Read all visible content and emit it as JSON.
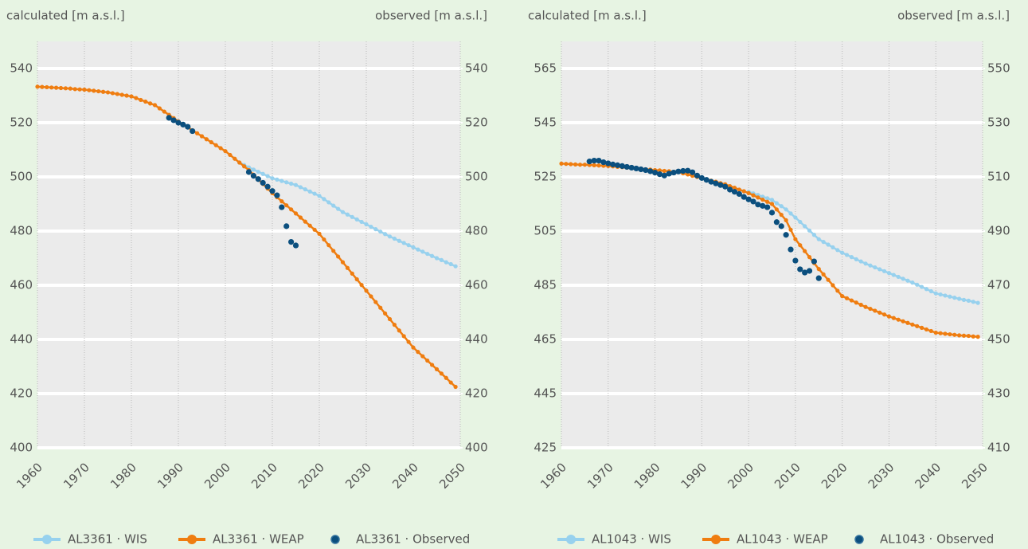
{
  "chart_data": [
    {
      "type": "line",
      "ylabel": "calculated [m a.s.l.]",
      "y2label": "observed [m a.s.l.]",
      "xlim": [
        1960,
        2050
      ],
      "xticks": [
        1960,
        1970,
        1980,
        1990,
        2000,
        2010,
        2020,
        2030,
        2040,
        2050
      ],
      "ylim": [
        400,
        550
      ],
      "yticks": [
        400,
        420,
        440,
        460,
        480,
        500,
        520,
        540
      ],
      "y2lim": [
        400,
        550
      ],
      "y2ticks": [
        400,
        420,
        440,
        460,
        480,
        500,
        520,
        540
      ],
      "grid": true,
      "x": [
        1960,
        1961,
        1962,
        1963,
        1964,
        1965,
        1966,
        1967,
        1968,
        1969,
        1970,
        1971,
        1972,
        1973,
        1974,
        1975,
        1976,
        1977,
        1978,
        1979,
        1980,
        1981,
        1982,
        1983,
        1984,
        1985,
        1986,
        1987,
        1988,
        1989,
        1990,
        1991,
        1992,
        1993,
        1994,
        1995,
        1996,
        1997,
        1998,
        1999,
        2000,
        2001,
        2002,
        2003,
        2004,
        2005,
        2006,
        2007,
        2008,
        2009,
        2010,
        2011,
        2012,
        2013,
        2014,
        2015,
        2016,
        2017,
        2018,
        2019,
        2020,
        2021,
        2022,
        2023,
        2024,
        2025,
        2026,
        2027,
        2028,
        2029,
        2030,
        2031,
        2032,
        2033,
        2034,
        2035,
        2036,
        2037,
        2038,
        2039,
        2040,
        2041,
        2042,
        2043,
        2044,
        2045,
        2046,
        2047,
        2048,
        2049
      ],
      "series": [
        {
          "name": "AL3361 · WIS",
          "color": "#97d1ee",
          "values": [
            null,
            null,
            null,
            null,
            null,
            null,
            null,
            null,
            null,
            null,
            null,
            null,
            null,
            null,
            null,
            null,
            null,
            null,
            null,
            null,
            null,
            null,
            null,
            null,
            null,
            null,
            null,
            null,
            null,
            null,
            null,
            null,
            null,
            null,
            null,
            null,
            null,
            null,
            null,
            null,
            null,
            null,
            null,
            505.3,
            504.4,
            503.5,
            502.7,
            501.9,
            501.1,
            500.3,
            499.5,
            499,
            498.5,
            498,
            497.5,
            497,
            496.2,
            495.4,
            494.6,
            493.8,
            493,
            491.8,
            490.6,
            489.4,
            488.2,
            487,
            486.1,
            485.2,
            484.3,
            483.4,
            482.5,
            481.6,
            480.7,
            479.8,
            478.9,
            478,
            477.2,
            476.4,
            475.6,
            474.8,
            474,
            473.2,
            472.4,
            471.6,
            470.8,
            470,
            469.3,
            468.5,
            467.8,
            467
          ]
        },
        {
          "name": "AL3361 · WEAP",
          "color": "#ef7d10",
          "values": [
            533.3,
            533.2,
            533.1,
            533,
            532.9,
            532.8,
            532.7,
            532.6,
            532.4,
            532.3,
            532.2,
            532,
            531.8,
            531.6,
            531.4,
            531.2,
            530.9,
            530.6,
            530.3,
            530,
            529.7,
            529.1,
            528.4,
            527.8,
            527.1,
            526.5,
            525.3,
            524.1,
            522.9,
            521.7,
            520.5,
            519.4,
            518.3,
            517.2,
            516.1,
            515,
            513.9,
            512.8,
            511.7,
            510.6,
            509.5,
            508.1,
            506.7,
            505.3,
            503.9,
            502.5,
            500.8,
            499.1,
            497.4,
            495.7,
            494,
            492.5,
            491,
            489.5,
            488,
            486.5,
            485,
            483.5,
            482,
            480.5,
            479,
            476.9,
            474.8,
            472.7,
            470.6,
            468.5,
            466.4,
            464.3,
            462.2,
            460.1,
            458,
            455.9,
            453.8,
            451.7,
            449.6,
            447.5,
            445.4,
            443.3,
            441.2,
            439.1,
            437,
            435.4,
            433.8,
            432.2,
            430.6,
            429,
            427.4,
            425.8,
            424.1,
            422.5
          ]
        },
        {
          "name": "AL3361 · Observed",
          "color": "#0b4f7e",
          "axis": "y2",
          "line": false,
          "x": [
            1988,
            1989,
            1990,
            1991,
            1992,
            1993,
            2005,
            2006,
            2007,
            2008,
            2009,
            2010,
            2011,
            2012,
            2013,
            2014,
            2015
          ],
          "values": [
            521.8,
            520.9,
            520,
            519.3,
            518.5,
            516.9,
            501.8,
            500.4,
            499.2,
            497.8,
            496.4,
            494.8,
            493.2,
            488.8,
            481.8,
            476,
            474.7
          ]
        }
      ]
    },
    {
      "type": "line",
      "ylabel": "calculated [m a.s.l.]",
      "y2label": "observed [m a.s.l.]",
      "xlim": [
        1960,
        2050
      ],
      "xticks": [
        1960,
        1970,
        1980,
        1990,
        2000,
        2010,
        2020,
        2030,
        2040,
        2050
      ],
      "ylim": [
        425,
        575
      ],
      "yticks": [
        425,
        445,
        465,
        485,
        505,
        525,
        545,
        565
      ],
      "y2lim": [
        410,
        560
      ],
      "y2ticks": [
        410,
        430,
        450,
        470,
        490,
        510,
        530,
        550
      ],
      "grid": true,
      "x": [
        1960,
        1961,
        1962,
        1963,
        1964,
        1965,
        1966,
        1967,
        1968,
        1969,
        1970,
        1971,
        1972,
        1973,
        1974,
        1975,
        1976,
        1977,
        1978,
        1979,
        1980,
        1981,
        1982,
        1983,
        1984,
        1985,
        1986,
        1987,
        1988,
        1989,
        1990,
        1991,
        1992,
        1993,
        1994,
        1995,
        1996,
        1997,
        1998,
        1999,
        2000,
        2001,
        2002,
        2003,
        2004,
        2005,
        2006,
        2007,
        2008,
        2009,
        2010,
        2011,
        2012,
        2013,
        2014,
        2015,
        2016,
        2017,
        2018,
        2019,
        2020,
        2021,
        2022,
        2023,
        2024,
        2025,
        2026,
        2027,
        2028,
        2029,
        2030,
        2031,
        2032,
        2033,
        2034,
        2035,
        2036,
        2037,
        2038,
        2039,
        2040,
        2041,
        2042,
        2043,
        2044,
        2045,
        2046,
        2047,
        2048,
        2049
      ],
      "series": [
        {
          "name": "AL1043 · WIS",
          "color": "#97d1ee",
          "values": [
            null,
            null,
            null,
            null,
            null,
            null,
            null,
            null,
            null,
            null,
            null,
            null,
            null,
            null,
            null,
            null,
            null,
            null,
            null,
            null,
            null,
            null,
            null,
            null,
            null,
            null,
            null,
            null,
            null,
            null,
            null,
            null,
            null,
            null,
            null,
            null,
            null,
            null,
            null,
            null,
            519.5,
            518.9,
            518.3,
            517.7,
            517.1,
            516.5,
            515.3,
            514.2,
            513,
            511.5,
            510,
            508.4,
            506.8,
            505.2,
            503.6,
            502,
            501,
            500,
            499,
            498,
            497,
            496.2,
            495.4,
            494.6,
            493.8,
            493,
            492.3,
            491.6,
            490.9,
            490.2,
            489.5,
            488.8,
            488.1,
            487.4,
            486.7,
            486,
            485.2,
            484.4,
            483.6,
            482.8,
            482,
            481.6,
            481.2,
            480.8,
            480.4,
            480,
            479.6,
            479.3,
            478.9,
            478.5
          ]
        },
        {
          "name": "AL1043 · WEAP",
          "color": "#ef7d10",
          "values": [
            529.9,
            529.8,
            529.7,
            529.6,
            529.5,
            529.5,
            529.4,
            529.3,
            529.2,
            529.1,
            529,
            528.9,
            528.7,
            528.6,
            528.4,
            528.3,
            528.1,
            528,
            527.8,
            527.7,
            527.5,
            527.4,
            527.2,
            527.1,
            526.9,
            526.8,
            526.3,
            525.9,
            525.4,
            525,
            524.5,
            524.1,
            523.6,
            523.2,
            522.7,
            522.3,
            521.6,
            521,
            520.3,
            519.7,
            519,
            518.2,
            517.4,
            516.6,
            515.8,
            515,
            513,
            511,
            509,
            505.5,
            502,
            499.8,
            497.6,
            495.4,
            493.2,
            491,
            489,
            487,
            485,
            483,
            481,
            480.2,
            479.4,
            478.6,
            477.8,
            477,
            476.3,
            475.6,
            474.9,
            474.2,
            473.5,
            472.9,
            472.3,
            471.7,
            471.1,
            470.5,
            469.9,
            469.3,
            468.7,
            468.1,
            467.5,
            467.3,
            467.1,
            466.9,
            466.7,
            466.5,
            466.4,
            466.3,
            466.1,
            466
          ]
        },
        {
          "name": "AL1043 · Observed",
          "color": "#0b4f7e",
          "axis": "y2",
          "line": false,
          "x": [
            1966,
            1967,
            1968,
            1969,
            1970,
            1971,
            1972,
            1973,
            1974,
            1975,
            1976,
            1977,
            1978,
            1979,
            1980,
            1981,
            1982,
            1983,
            1984,
            1985,
            1986,
            1987,
            1988,
            1989,
            1990,
            1991,
            1992,
            1993,
            1994,
            1995,
            1996,
            1997,
            1998,
            1999,
            2000,
            2001,
            2002,
            2003,
            2004,
            2005,
            2006,
            2007,
            2008,
            2009,
            2010,
            2011,
            2012,
            2013,
            2014,
            2015
          ],
          "values": [
            515.7,
            516,
            516,
            515.4,
            515,
            514.6,
            514.3,
            514,
            513.7,
            513.4,
            513.1,
            512.8,
            512.5,
            512.1,
            511.6,
            511,
            510.5,
            511.2,
            511.6,
            512,
            512.2,
            512.3,
            511.7,
            510.5,
            509.6,
            508.9,
            508.2,
            507.6,
            507,
            506.4,
            505.3,
            504.5,
            503.7,
            502.6,
            501.7,
            500.9,
            499.8,
            499.3,
            498.8,
            496.8,
            493.3,
            491.8,
            488.6,
            483.2,
            479.1,
            475.9,
            474.7,
            475.3,
            478.8,
            472.6
          ]
        }
      ]
    }
  ]
}
